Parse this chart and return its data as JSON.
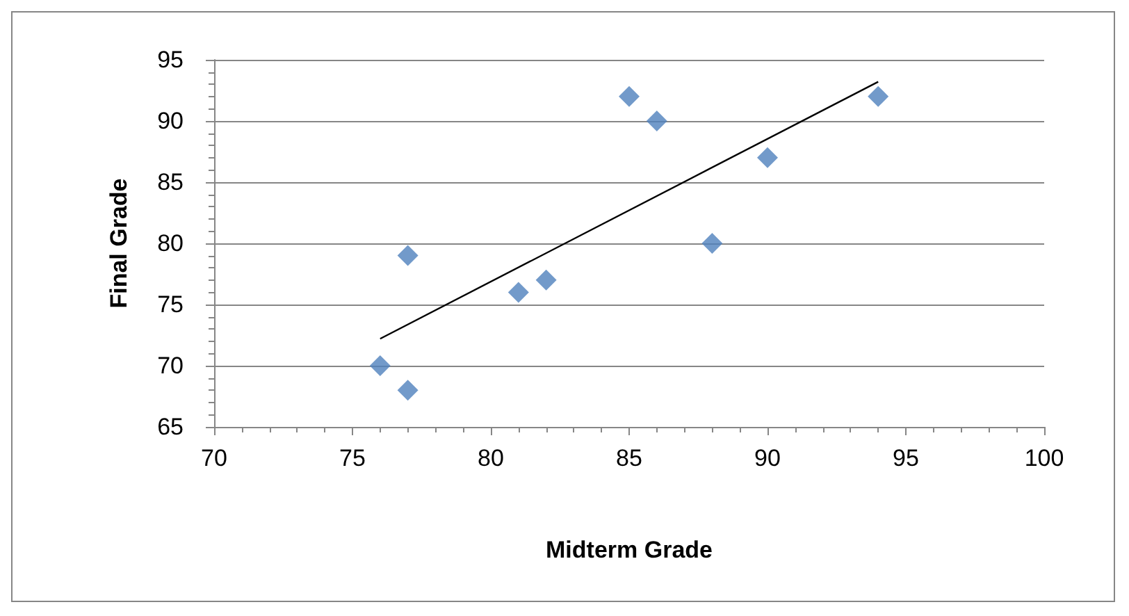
{
  "chart_data": {
    "type": "scatter",
    "xlabel": "Midterm Grade",
    "ylabel": "Final Grade",
    "xlim": [
      70,
      100
    ],
    "xticks": [
      70,
      75,
      80,
      85,
      90,
      95,
      100
    ],
    "ylim": [
      65,
      95
    ],
    "yticks": [
      65,
      70,
      75,
      80,
      85,
      90,
      95
    ],
    "grid": "y",
    "marker": "diamond",
    "series": [
      {
        "color": "#4f81bd",
        "x": [
          76,
          77,
          77,
          81,
          82,
          85,
          86,
          88,
          90,
          94
        ],
        "values": [
          70,
          68,
          79,
          76,
          77,
          92,
          90,
          80,
          87,
          92
        ]
      },
      {
        "type": "line",
        "color": "#000000",
        "marker": "none",
        "line_style": "solid",
        "x": [
          76,
          94
        ],
        "values": [
          72.2,
          93.2
        ]
      }
    ]
  }
}
